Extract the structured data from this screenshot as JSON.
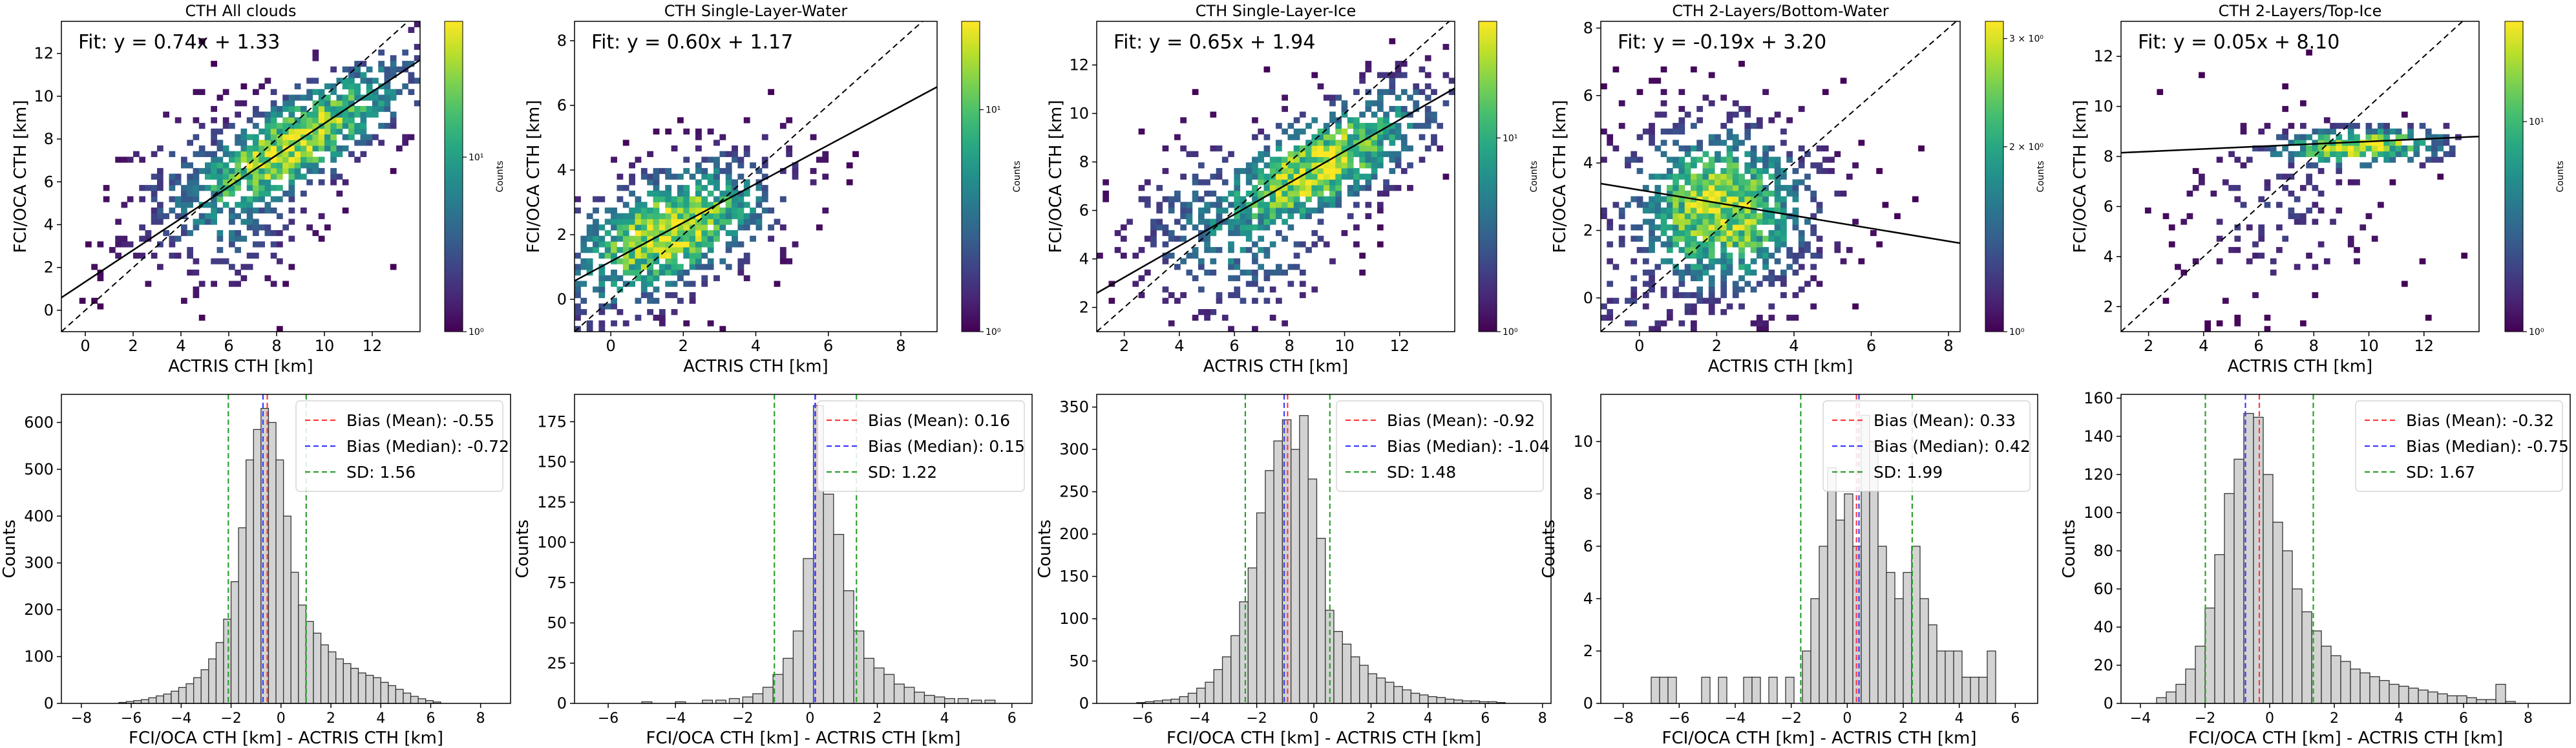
{
  "figure": {
    "scatter_xlabel": "ACTRIS CTH [km]",
    "scatter_ylabel": "FCI/OCA CTH [km]",
    "hist_xlabel": "FCI/OCA CTH [km] - ACTRIS CTH [km]",
    "hist_ylabel": "Counts",
    "colorbar_label": "Counts"
  },
  "colors": {
    "mean": "#ff3b3b",
    "median": "#3b3bff",
    "sd": "#2ca02c",
    "bar_fill": "#d3d3d3",
    "bar_edge": "#333333",
    "viridis": [
      "#440154",
      "#482878",
      "#3e4989",
      "#31688e",
      "#26828e",
      "#1f9e89",
      "#35b779",
      "#6ece58",
      "#b5de2b",
      "#fde725"
    ]
  },
  "chart_data": [
    {
      "type": "heatmap",
      "title": "CTH All clouds",
      "fit_label": "Fit: y = 0.74x + 1.33",
      "slope": 0.74,
      "intercept": 1.33,
      "xlim": [
        -1,
        14
      ],
      "ylim": [
        -1,
        13.5
      ],
      "xticks": [
        0,
        2,
        4,
        6,
        8,
        10,
        12
      ],
      "yticks": [
        0,
        2,
        4,
        6,
        8,
        10,
        12
      ],
      "cb_ticks": [
        {
          "v": 1,
          "label": "10⁰"
        },
        {
          "v": 10,
          "label": "10¹"
        }
      ],
      "cb_max": 60,
      "density": {
        "cx": 8.5,
        "cy": 7.6,
        "spread": 3.2,
        "tilt": 0.74,
        "width": 1.6
      }
    },
    {
      "type": "heatmap",
      "title": "CTH Single-Layer-Water",
      "fit_label": "Fit: y = 0.60x + 1.17",
      "slope": 0.6,
      "intercept": 1.17,
      "xlim": [
        -1,
        9
      ],
      "ylim": [
        -1,
        8.6
      ],
      "xticks": [
        0,
        2,
        4,
        6,
        8
      ],
      "yticks": [
        0,
        2,
        4,
        6,
        8
      ],
      "cb_ticks": [
        {
          "v": 1,
          "label": "10⁰"
        },
        {
          "v": 10,
          "label": "10¹"
        }
      ],
      "cb_max": 25,
      "density": {
        "cx": 1.5,
        "cy": 2.0,
        "spread": 1.8,
        "tilt": 0.6,
        "width": 1.3
      }
    },
    {
      "type": "heatmap",
      "title": "CTH Single-Layer-Ice",
      "fit_label": "Fit: y = 0.65x + 1.94",
      "slope": 0.65,
      "intercept": 1.94,
      "xlim": [
        1,
        14
      ],
      "ylim": [
        1,
        13.8
      ],
      "xticks": [
        2,
        4,
        6,
        8,
        10,
        12
      ],
      "yticks": [
        2,
        4,
        6,
        8,
        10,
        12
      ],
      "cb_ticks": [
        {
          "v": 1,
          "label": "10⁰"
        },
        {
          "v": 10,
          "label": "10¹"
        }
      ],
      "cb_max": 40,
      "density": {
        "cx": 8.8,
        "cy": 7.6,
        "spread": 2.6,
        "tilt": 0.7,
        "width": 1.5
      }
    },
    {
      "type": "heatmap",
      "title": "CTH 2-Layers/Bottom-Water",
      "fit_label": "Fit: y = -0.19x + 3.20",
      "slope": -0.19,
      "intercept": 3.2,
      "xlim": [
        -1,
        8.3
      ],
      "ylim": [
        -1,
        8.2
      ],
      "xticks": [
        0,
        2,
        4,
        6,
        8
      ],
      "yticks": [
        0,
        2,
        4,
        6,
        8
      ],
      "cb_ticks": [
        {
          "v": 1,
          "label": "10⁰"
        },
        {
          "v": 2,
          "label": "2 × 10⁰"
        },
        {
          "v": 3,
          "label": "3 × 10⁰"
        }
      ],
      "cb_max": 3.2,
      "density": {
        "cx": 2.0,
        "cy": 2.5,
        "spread": 1.5,
        "tilt": 0.2,
        "width": 1.6
      }
    },
    {
      "type": "heatmap",
      "title": "CTH 2-Layers/Top-Ice",
      "fit_label": "Fit: y = 0.05x + 8.10",
      "slope": 0.05,
      "intercept": 8.1,
      "xlim": [
        1,
        14
      ],
      "ylim": [
        1,
        13.4
      ],
      "xticks": [
        2,
        4,
        6,
        8,
        10,
        12
      ],
      "yticks": [
        2,
        4,
        6,
        8,
        10,
        12
      ],
      "cb_ticks": [
        {
          "v": 1,
          "label": "10⁰"
        },
        {
          "v": 10,
          "label": "10¹"
        }
      ],
      "cb_max": 30,
      "density": {
        "cx": 9.5,
        "cy": 8.3,
        "spread": 2.2,
        "tilt": 0.05,
        "width": 0.5
      }
    },
    {
      "type": "bar",
      "subtype": "histogram",
      "xlim": [
        -8.8,
        9.2
      ],
      "ylim": [
        0,
        660
      ],
      "xticks": [
        -8,
        -6,
        -4,
        -2,
        0,
        2,
        4,
        6,
        8
      ],
      "yticks": [
        0,
        100,
        200,
        300,
        400,
        500,
        600
      ],
      "bins": [
        [
          -6.5,
          2
        ],
        [
          -6.2,
          4
        ],
        [
          -5.9,
          6
        ],
        [
          -5.6,
          8
        ],
        [
          -5.3,
          12
        ],
        [
          -5.0,
          16
        ],
        [
          -4.7,
          20
        ],
        [
          -4.4,
          26
        ],
        [
          -4.1,
          34
        ],
        [
          -3.8,
          42
        ],
        [
          -3.5,
          55
        ],
        [
          -3.2,
          72
        ],
        [
          -2.9,
          95
        ],
        [
          -2.6,
          130
        ],
        [
          -2.3,
          180
        ],
        [
          -2.0,
          260
        ],
        [
          -1.7,
          375
        ],
        [
          -1.4,
          520
        ],
        [
          -1.1,
          585
        ],
        [
          -0.8,
          630
        ],
        [
          -0.5,
          600
        ],
        [
          -0.2,
          520
        ],
        [
          0.1,
          400
        ],
        [
          0.4,
          280
        ],
        [
          0.7,
          210
        ],
        [
          1.0,
          175
        ],
        [
          1.3,
          150
        ],
        [
          1.6,
          125
        ],
        [
          1.9,
          110
        ],
        [
          2.2,
          95
        ],
        [
          2.5,
          85
        ],
        [
          2.8,
          75
        ],
        [
          3.1,
          65
        ],
        [
          3.4,
          60
        ],
        [
          3.7,
          55
        ],
        [
          4.0,
          45
        ],
        [
          4.3,
          38
        ],
        [
          4.6,
          30
        ],
        [
          4.9,
          22
        ],
        [
          5.2,
          15
        ],
        [
          5.5,
          10
        ],
        [
          5.8,
          6
        ],
        [
          6.1,
          3
        ]
      ],
      "bin_width": 0.3,
      "mean": -0.55,
      "median": -0.72,
      "sd_lines": [
        -2.11,
        1.01
      ],
      "legend": [
        "Bias (Mean): -0.55",
        "Bias (Median): -0.72",
        "SD: 1.56"
      ]
    },
    {
      "type": "bar",
      "subtype": "histogram",
      "xlim": [
        -7,
        6.6
      ],
      "ylim": [
        0,
        192
      ],
      "xticks": [
        -6,
        -4,
        -2,
        0,
        2,
        4,
        6
      ],
      "yticks": [
        0,
        25,
        50,
        75,
        100,
        125,
        150,
        175
      ],
      "bins": [
        [
          -5.0,
          1
        ],
        [
          -4.0,
          1
        ],
        [
          -3.2,
          2
        ],
        [
          -2.8,
          2
        ],
        [
          -2.4,
          3
        ],
        [
          -2.0,
          4
        ],
        [
          -1.7,
          6
        ],
        [
          -1.4,
          10
        ],
        [
          -1.1,
          18
        ],
        [
          -0.8,
          28
        ],
        [
          -0.5,
          45
        ],
        [
          -0.2,
          90
        ],
        [
          0.1,
          185
        ],
        [
          0.4,
          130
        ],
        [
          0.7,
          105
        ],
        [
          1.0,
          70
        ],
        [
          1.3,
          45
        ],
        [
          1.6,
          28
        ],
        [
          1.9,
          22
        ],
        [
          2.2,
          18
        ],
        [
          2.5,
          12
        ],
        [
          2.8,
          10
        ],
        [
          3.1,
          7
        ],
        [
          3.4,
          5
        ],
        [
          3.7,
          4
        ],
        [
          4.0,
          3
        ],
        [
          4.4,
          3
        ],
        [
          4.8,
          2
        ],
        [
          5.2,
          2
        ]
      ],
      "bin_width": 0.3,
      "mean": 0.16,
      "median": 0.15,
      "sd_lines": [
        -1.06,
        1.38
      ],
      "legend": [
        "Bias (Mean): 0.16",
        "Bias (Median): 0.15",
        "SD: 1.22"
      ]
    },
    {
      "type": "bar",
      "subtype": "histogram",
      "xlim": [
        -7.6,
        8.3
      ],
      "ylim": [
        0,
        365
      ],
      "xticks": [
        -6,
        -4,
        -2,
        0,
        2,
        4,
        6,
        8
      ],
      "yticks": [
        0,
        50,
        100,
        150,
        200,
        250,
        300,
        350
      ],
      "bins": [
        [
          -6.2,
          1
        ],
        [
          -5.9,
          2
        ],
        [
          -5.6,
          3
        ],
        [
          -5.3,
          4
        ],
        [
          -5.0,
          5
        ],
        [
          -4.7,
          8
        ],
        [
          -4.4,
          12
        ],
        [
          -4.1,
          18
        ],
        [
          -3.8,
          25
        ],
        [
          -3.5,
          40
        ],
        [
          -3.2,
          55
        ],
        [
          -2.9,
          80
        ],
        [
          -2.6,
          120
        ],
        [
          -2.3,
          160
        ],
        [
          -2.0,
          225
        ],
        [
          -1.7,
          275
        ],
        [
          -1.4,
          310
        ],
        [
          -1.1,
          335
        ],
        [
          -0.8,
          300
        ],
        [
          -0.5,
          340
        ],
        [
          -0.2,
          265
        ],
        [
          0.1,
          195
        ],
        [
          0.4,
          110
        ],
        [
          0.7,
          85
        ],
        [
          1.0,
          70
        ],
        [
          1.3,
          55
        ],
        [
          1.6,
          45
        ],
        [
          1.9,
          35
        ],
        [
          2.2,
          30
        ],
        [
          2.5,
          25
        ],
        [
          2.8,
          20
        ],
        [
          3.1,
          16
        ],
        [
          3.4,
          12
        ],
        [
          3.7,
          10
        ],
        [
          4.0,
          8
        ],
        [
          4.3,
          7
        ],
        [
          4.6,
          5
        ],
        [
          4.9,
          4
        ],
        [
          5.2,
          3
        ],
        [
          5.5,
          3
        ],
        [
          5.8,
          2
        ],
        [
          6.1,
          2
        ],
        [
          6.4,
          1
        ]
      ],
      "bin_width": 0.3,
      "mean": -0.92,
      "median": -1.04,
      "sd_lines": [
        -2.4,
        0.56
      ],
      "legend": [
        "Bias (Mean): -0.92",
        "Bias (Median): -1.04",
        "SD: 1.48"
      ]
    },
    {
      "type": "bar",
      "subtype": "histogram",
      "xlim": [
        -8.8,
        6.8
      ],
      "ylim": [
        0,
        11.8
      ],
      "xticks": [
        -8,
        -6,
        -4,
        -2,
        0,
        2,
        4,
        6
      ],
      "yticks": [
        0,
        2,
        4,
        6,
        8,
        10
      ],
      "bins": [
        [
          -7.0,
          1
        ],
        [
          -6.7,
          1
        ],
        [
          -6.4,
          1
        ],
        [
          -5.2,
          1
        ],
        [
          -4.6,
          1
        ],
        [
          -3.7,
          1
        ],
        [
          -3.4,
          1
        ],
        [
          -2.8,
          1
        ],
        [
          -2.2,
          1
        ],
        [
          -1.6,
          2
        ],
        [
          -1.3,
          4
        ],
        [
          -1.0,
          6
        ],
        [
          -0.7,
          9
        ],
        [
          -0.4,
          7
        ],
        [
          -0.1,
          8
        ],
        [
          0.2,
          6
        ],
        [
          0.5,
          11
        ],
        [
          0.8,
          10
        ],
        [
          1.1,
          6
        ],
        [
          1.4,
          5
        ],
        [
          1.7,
          4
        ],
        [
          2.0,
          5
        ],
        [
          2.3,
          6
        ],
        [
          2.6,
          4
        ],
        [
          2.9,
          3
        ],
        [
          3.2,
          2
        ],
        [
          3.5,
          2
        ],
        [
          3.8,
          2
        ],
        [
          4.1,
          1
        ],
        [
          4.4,
          1
        ],
        [
          4.7,
          1
        ],
        [
          5.0,
          2
        ]
      ],
      "bin_width": 0.3,
      "mean": 0.33,
      "median": 0.42,
      "sd_lines": [
        -1.66,
        2.32
      ],
      "legend": [
        "Bias (Mean): 0.33",
        "Bias (Median): 0.42",
        "SD: 1.99"
      ]
    },
    {
      "type": "bar",
      "subtype": "histogram",
      "xlim": [
        -4.6,
        9.3
      ],
      "ylim": [
        0,
        162
      ],
      "xticks": [
        -4,
        -2,
        0,
        2,
        4,
        6,
        8
      ],
      "yticks": [
        0,
        20,
        40,
        60,
        80,
        100,
        120,
        140,
        160
      ],
      "bins": [
        [
          -3.5,
          3
        ],
        [
          -3.2,
          6
        ],
        [
          -2.9,
          10
        ],
        [
          -2.6,
          18
        ],
        [
          -2.3,
          30
        ],
        [
          -2.0,
          50
        ],
        [
          -1.7,
          78
        ],
        [
          -1.4,
          110
        ],
        [
          -1.1,
          128
        ],
        [
          -0.8,
          152
        ],
        [
          -0.5,
          150
        ],
        [
          -0.2,
          120
        ],
        [
          0.1,
          95
        ],
        [
          0.4,
          80
        ],
        [
          0.7,
          60
        ],
        [
          1.0,
          48
        ],
        [
          1.3,
          38
        ],
        [
          1.6,
          30
        ],
        [
          1.9,
          25
        ],
        [
          2.2,
          22
        ],
        [
          2.5,
          18
        ],
        [
          2.8,
          16
        ],
        [
          3.1,
          14
        ],
        [
          3.4,
          12
        ],
        [
          3.7,
          10
        ],
        [
          4.0,
          9
        ],
        [
          4.3,
          8
        ],
        [
          4.6,
          7
        ],
        [
          4.9,
          6
        ],
        [
          5.2,
          5
        ],
        [
          5.5,
          4
        ],
        [
          5.8,
          4
        ],
        [
          6.1,
          3
        ],
        [
          6.4,
          2
        ],
        [
          6.7,
          2
        ],
        [
          7.0,
          10
        ],
        [
          7.3,
          1
        ]
      ],
      "bin_width": 0.3,
      "mean": -0.32,
      "median": -0.75,
      "sd_lines": [
        -1.99,
        1.35
      ],
      "legend": [
        "Bias (Mean): -0.32",
        "Bias (Median): -0.75",
        "SD: 1.67"
      ]
    }
  ]
}
